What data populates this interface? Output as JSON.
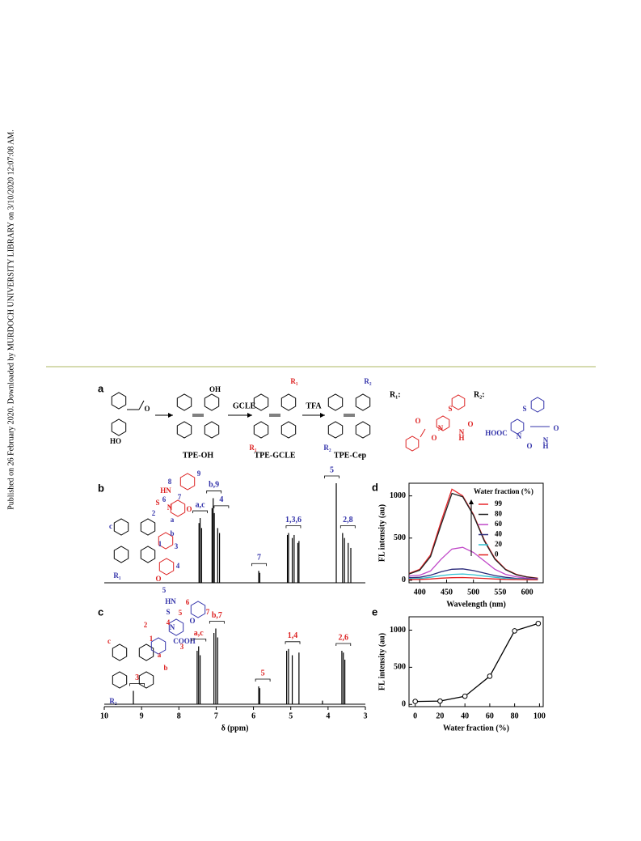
{
  "watermark": "Published on 26 February 2020. Downloaded by MURDOCH UNIVERSITY LIBRARY on 3/10/2020 12:07:08 AM.",
  "scheme": {
    "panel": "a",
    "reagents": [
      "GCLE",
      "TFA"
    ],
    "compounds": [
      "TPE-OH",
      "TPE-GCLE",
      "TPE-Cep"
    ],
    "atoms": [
      "O",
      "HO",
      "OH",
      "R₁",
      "R₁",
      "R₂",
      "R₂"
    ],
    "groups": [
      "R₁:",
      "R₂:"
    ],
    "group_atoms": [
      "S",
      "N",
      "O",
      "O",
      "H",
      "N",
      "O",
      "S",
      "HOOC",
      "N",
      "O",
      "N",
      "H",
      "O"
    ]
  },
  "chart_data": [
    {
      "panel": "b",
      "type": "spectrum",
      "color": "#000000",
      "x": [
        7.46,
        7.43,
        7.39,
        7.11,
        7.08,
        7.05,
        6.96,
        6.91,
        5.86,
        5.83,
        5.09,
        5.06,
        4.96,
        4.91,
        4.81,
        4.78,
        3.78,
        3.61,
        3.56,
        3.46,
        3.39
      ],
      "values": [
        60,
        65,
        55,
        75,
        85,
        70,
        55,
        50,
        12,
        10,
        48,
        50,
        45,
        48,
        40,
        42,
        100,
        50,
        45,
        40,
        35
      ],
      "xlim": [
        10,
        3
      ],
      "ylim": [
        0,
        100
      ],
      "annotations": [
        {
          "text": "a,c",
          "x": 7.43
        },
        {
          "text": "b,9",
          "x": 7.06
        },
        {
          "text": "4",
          "x": 6.86
        },
        {
          "text": "7",
          "x": 5.85
        },
        {
          "text": "1,3,6",
          "x": 4.93
        },
        {
          "text": "5",
          "x": 3.9
        },
        {
          "text": "2,8",
          "x": 3.47
        }
      ],
      "structure_labels": [
        "c",
        "a",
        "b",
        "2",
        "1",
        "3",
        "4",
        "5",
        "6",
        "7",
        "8",
        "9",
        "S",
        "N",
        "O",
        "HN",
        "O",
        "R₁"
      ]
    },
    {
      "panel": "c",
      "type": "spectrum",
      "color": "#000000",
      "x": [
        9.22,
        7.51,
        7.47,
        7.43,
        7.06,
        7.01,
        6.96,
        5.86,
        5.83,
        5.11,
        5.06,
        4.96,
        4.78,
        4.15,
        3.63,
        3.59,
        3.55
      ],
      "values": [
        15,
        60,
        65,
        55,
        80,
        85,
        75,
        20,
        18,
        60,
        62,
        55,
        58,
        4,
        60,
        58,
        50
      ],
      "xlim": [
        10,
        3
      ],
      "ylim": [
        0,
        100
      ],
      "xticks": [
        10,
        9,
        8,
        7,
        6,
        5,
        4,
        3
      ],
      "xlabel": "δ (ppm)",
      "annotations": [
        {
          "text": "3",
          "x": 9.12
        },
        {
          "text": "a,c",
          "x": 7.47
        },
        {
          "text": "b,7",
          "x": 6.98
        },
        {
          "text": "5",
          "x": 5.75
        },
        {
          "text": "1,4",
          "x": 4.95
        },
        {
          "text": "2,6",
          "x": 3.59
        }
      ],
      "structure_labels": [
        "c",
        "a",
        "b",
        "1",
        "2",
        "3",
        "4",
        "5",
        "6",
        "7",
        "S",
        "N",
        "O",
        "HN",
        "COOH",
        "R₂"
      ]
    },
    {
      "panel": "d",
      "type": "line",
      "x": [
        380,
        400,
        420,
        440,
        460,
        480,
        500,
        520,
        540,
        560,
        580,
        600,
        620
      ],
      "series": [
        {
          "name": "99",
          "color": "#e8262a",
          "values": [
            80,
            130,
            300,
            700,
            1080,
            1000,
            780,
            480,
            260,
            130,
            70,
            40,
            25
          ]
        },
        {
          "name": "80",
          "color": "#222222",
          "values": [
            75,
            120,
            280,
            660,
            1030,
            990,
            770,
            470,
            250,
            125,
            65,
            38,
            22
          ]
        },
        {
          "name": "60",
          "color": "#c048c8",
          "values": [
            50,
            60,
            110,
            250,
            370,
            390,
            330,
            230,
            130,
            70,
            40,
            25,
            15
          ]
        },
        {
          "name": "40",
          "color": "#2a2a7a",
          "values": [
            30,
            35,
            60,
            100,
            130,
            135,
            115,
            85,
            55,
            35,
            22,
            15,
            10
          ]
        },
        {
          "name": "20",
          "color": "#30c0d0",
          "values": [
            20,
            22,
            35,
            55,
            70,
            75,
            65,
            50,
            35,
            22,
            15,
            10,
            8
          ]
        },
        {
          "name": "0",
          "color": "#e02020",
          "values": [
            10,
            10,
            15,
            25,
            30,
            32,
            28,
            22,
            15,
            10,
            8,
            6,
            5
          ]
        }
      ],
      "legend_title": "Water fraction (%)",
      "xlim": [
        380,
        630
      ],
      "xticks": [
        400,
        450,
        500,
        550,
        600
      ],
      "ylim": [
        -30,
        1150
      ],
      "yticks": [
        0,
        500,
        1000
      ],
      "xlabel": "Wavelength (nm)",
      "ylabel": "FL intensity (au)"
    },
    {
      "panel": "e",
      "type": "errorline",
      "color": "#000000",
      "x": [
        0,
        20,
        40,
        60,
        80,
        99
      ],
      "values": [
        40,
        45,
        110,
        380,
        990,
        1090
      ],
      "errors": [
        10,
        10,
        15,
        25,
        30,
        30
      ],
      "xlim": [
        -5,
        103
      ],
      "xticks": [
        0,
        20,
        40,
        60,
        80,
        100
      ],
      "ylim": [
        -30,
        1180
      ],
      "yticks": [
        0,
        500,
        1000
      ],
      "xlabel": "Water fraction  (%)",
      "ylabel": "FL intensity (au)"
    }
  ]
}
